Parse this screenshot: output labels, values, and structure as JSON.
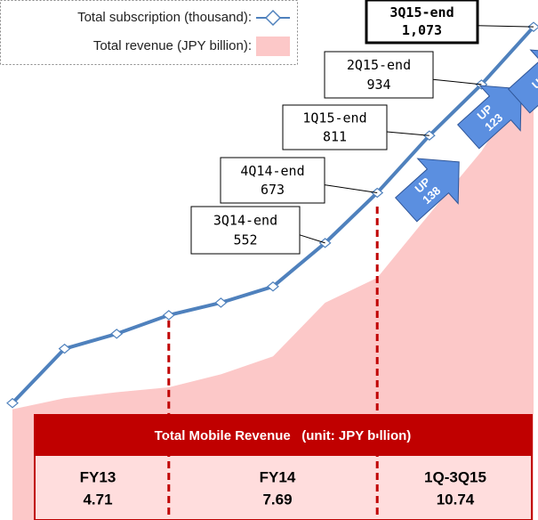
{
  "chart_data": {
    "type": "line",
    "legend": {
      "position": "top-left"
    },
    "categories": [
      null,
      null,
      null,
      null,
      null,
      null,
      null,
      null,
      null,
      null,
      null
    ],
    "ylim": [
      0,
      1200
    ],
    "y2lim": [
      0,
      5
    ],
    "series": [
      {
        "name": "Total subscription (thousand):",
        "color": "#4f81bd",
        "values": [
          166,
          297,
          333,
          378,
          408,
          447,
          552,
          673,
          811,
          934,
          1073
        ],
        "point_labels": [
          null,
          null,
          null,
          null,
          null,
          null,
          "3Q14-end",
          "4Q14-end",
          "1Q15-end",
          "2Q15-end",
          "3Q15-end"
        ],
        "value_labels": [
          null,
          null,
          null,
          null,
          null,
          null,
          "552",
          "673",
          "811",
          "934",
          "1,073"
        ]
      },
      {
        "name": "Total revenue (JPY billion):",
        "color": "#fcc8c8",
        "type": "area",
        "axis": "y2",
        "values": [
          0.63,
          0.74,
          0.8,
          0.85,
          0.98,
          1.16,
          1.7,
          1.95,
          2.59,
          3.22,
          4.03
        ]
      }
    ],
    "arrows": [
      {
        "text": "UP",
        "value": 138
      },
      {
        "text": "UP",
        "value": 123
      },
      {
        "text": "UP"
      }
    ],
    "table": {
      "title": "Total Mobile Revenue   (unit: JPY billion)",
      "columns": [
        "FY13",
        "FY14",
        "1Q-3Q15"
      ],
      "values": [
        4.71,
        7.69,
        10.74
      ]
    }
  }
}
